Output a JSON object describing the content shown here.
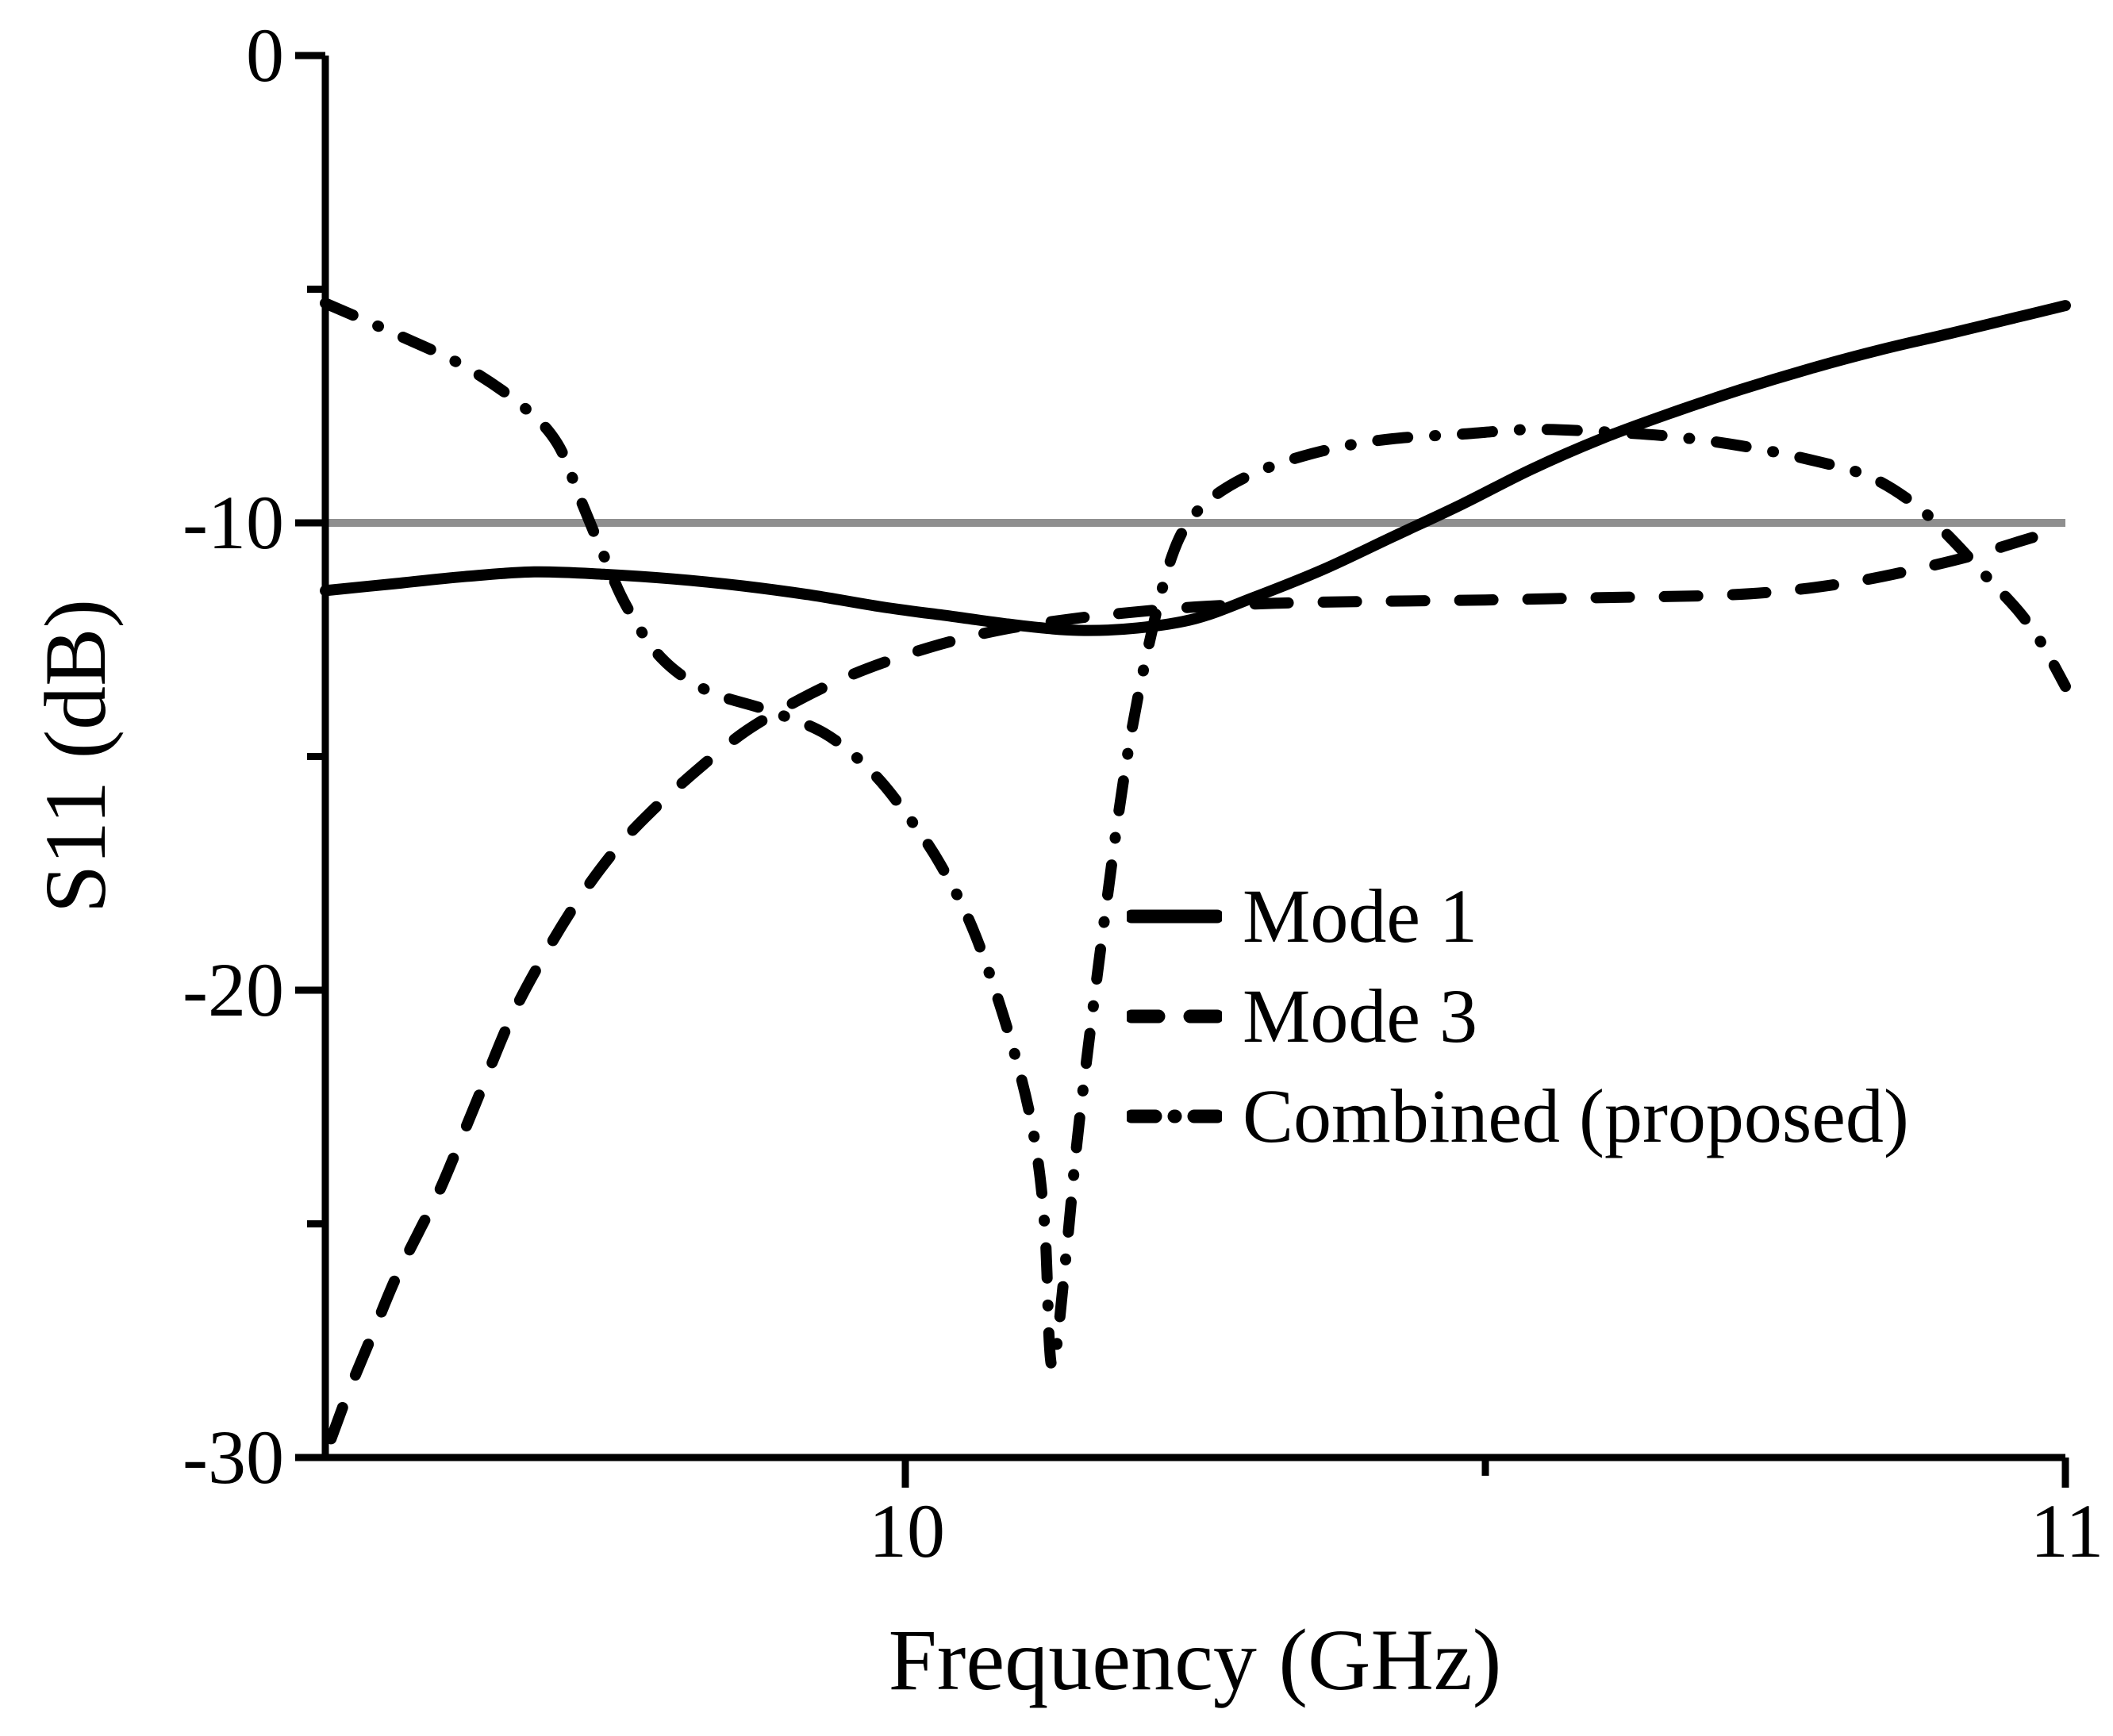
{
  "figure": {
    "xlabel": "Frequency (GHz)",
    "ylabel": "S11 (dB)",
    "background_color": "#ffffff",
    "curve_color": "#000000",
    "axis_color": "#000000",
    "threshold_color": "#8f8f8f"
  },
  "chart_data": {
    "type": "line",
    "title": "",
    "xlabel": "Frequency (GHz)",
    "ylabel": "S11 (dB)",
    "xlim": [
      9.5,
      11.0
    ],
    "ylim": [
      -30,
      0
    ],
    "grid": false,
    "legend_position": "inside lower-right",
    "x_major_ticks": [
      {
        "value": 10,
        "label": "10"
      },
      {
        "value": 11,
        "label": "11"
      }
    ],
    "x_minor_ticks": [
      10.5
    ],
    "y_major_ticks": [
      {
        "value": 0,
        "label": "0"
      },
      {
        "value": -10,
        "label": "-10"
      },
      {
        "value": -20,
        "label": "-20"
      },
      {
        "value": -30,
        "label": "-30"
      }
    ],
    "y_minor_ticks": [
      -5,
      -15,
      -25
    ],
    "threshold_line": {
      "value": -10,
      "color": "#8f8f8f",
      "meaning": "-10 dB matching reference"
    },
    "series": [
      {
        "name": "Mode 1",
        "style": "solid",
        "color": "#000000",
        "points": [
          [
            9.5,
            -11.45
          ],
          [
            9.56,
            -11.3
          ],
          [
            9.62,
            -11.15
          ],
          [
            9.68,
            -11.05
          ],
          [
            9.74,
            -11.1
          ],
          [
            9.8,
            -11.2
          ],
          [
            9.86,
            -11.35
          ],
          [
            9.92,
            -11.55
          ],
          [
            9.98,
            -11.8
          ],
          [
            10.04,
            -12.0
          ],
          [
            10.1,
            -12.2
          ],
          [
            10.15,
            -12.3
          ],
          [
            10.2,
            -12.25
          ],
          [
            10.25,
            -12.05
          ],
          [
            10.3,
            -11.6
          ],
          [
            10.36,
            -11.0
          ],
          [
            10.42,
            -10.3
          ],
          [
            10.48,
            -9.6
          ],
          [
            10.54,
            -8.85
          ],
          [
            10.6,
            -8.2
          ],
          [
            10.66,
            -7.65
          ],
          [
            10.72,
            -7.15
          ],
          [
            10.78,
            -6.7
          ],
          [
            10.84,
            -6.3
          ],
          [
            10.9,
            -5.95
          ],
          [
            10.95,
            -5.65
          ],
          [
            11.0,
            -5.35
          ]
        ]
      },
      {
        "name": "Mode 3",
        "style": "dashed",
        "color": "#000000",
        "points": [
          [
            9.505,
            -29.6
          ],
          [
            9.52,
            -28.6
          ],
          [
            9.54,
            -27.4
          ],
          [
            9.56,
            -26.2
          ],
          [
            9.58,
            -25.2
          ],
          [
            9.6,
            -24.2
          ],
          [
            9.63,
            -22.4
          ],
          [
            9.66,
            -20.6
          ],
          [
            9.69,
            -19.2
          ],
          [
            9.72,
            -18.0
          ],
          [
            9.75,
            -17.0
          ],
          [
            9.78,
            -16.2
          ],
          [
            9.82,
            -15.3
          ],
          [
            9.86,
            -14.5
          ],
          [
            9.9,
            -13.9
          ],
          [
            9.94,
            -13.4
          ],
          [
            9.98,
            -13.0
          ],
          [
            10.03,
            -12.6
          ],
          [
            10.08,
            -12.3
          ],
          [
            10.13,
            -12.1
          ],
          [
            10.18,
            -11.95
          ],
          [
            10.25,
            -11.8
          ],
          [
            10.32,
            -11.72
          ],
          [
            10.4,
            -11.68
          ],
          [
            10.5,
            -11.65
          ],
          [
            10.6,
            -11.6
          ],
          [
            10.7,
            -11.55
          ],
          [
            10.76,
            -11.45
          ],
          [
            10.82,
            -11.25
          ],
          [
            10.87,
            -11.0
          ],
          [
            10.92,
            -10.7
          ],
          [
            10.96,
            -10.4
          ],
          [
            11.0,
            -10.1
          ]
        ]
      },
      {
        "name": "Combined (proposed)",
        "style": "dashdot",
        "color": "#000000",
        "points": [
          [
            9.5,
            -5.3
          ],
          [
            9.56,
            -5.95
          ],
          [
            9.62,
            -6.65
          ],
          [
            9.67,
            -7.5
          ],
          [
            9.7,
            -8.3
          ],
          [
            9.72,
            -9.5
          ],
          [
            9.74,
            -10.7
          ],
          [
            9.76,
            -11.8
          ],
          [
            9.79,
            -12.9
          ],
          [
            9.83,
            -13.6
          ],
          [
            9.88,
            -14.0
          ],
          [
            9.93,
            -14.5
          ],
          [
            9.97,
            -15.3
          ],
          [
            10.0,
            -16.2
          ],
          [
            10.03,
            -17.3
          ],
          [
            10.06,
            -18.8
          ],
          [
            10.09,
            -21.0
          ],
          [
            10.11,
            -23.0
          ],
          [
            10.12,
            -25.0
          ],
          [
            10.124,
            -27.5
          ],
          [
            10.127,
            -28.05
          ],
          [
            10.131,
            -27.5
          ],
          [
            10.14,
            -25.3
          ],
          [
            10.15,
            -22.8
          ],
          [
            10.17,
            -18.8
          ],
          [
            10.19,
            -15.2
          ],
          [
            10.21,
            -12.6
          ],
          [
            10.23,
            -10.7
          ],
          [
            10.25,
            -9.8
          ],
          [
            10.28,
            -9.2
          ],
          [
            10.32,
            -8.75
          ],
          [
            10.37,
            -8.4
          ],
          [
            10.42,
            -8.2
          ],
          [
            10.48,
            -8.1
          ],
          [
            10.54,
            -8.0
          ],
          [
            10.6,
            -8.05
          ],
          [
            10.66,
            -8.15
          ],
          [
            10.72,
            -8.35
          ],
          [
            10.78,
            -8.65
          ],
          [
            10.83,
            -9.0
          ],
          [
            10.87,
            -9.6
          ],
          [
            10.9,
            -10.3
          ],
          [
            10.93,
            -11.1
          ],
          [
            10.96,
            -11.9
          ],
          [
            10.98,
            -12.6
          ],
          [
            11.0,
            -13.5
          ]
        ]
      }
    ]
  }
}
